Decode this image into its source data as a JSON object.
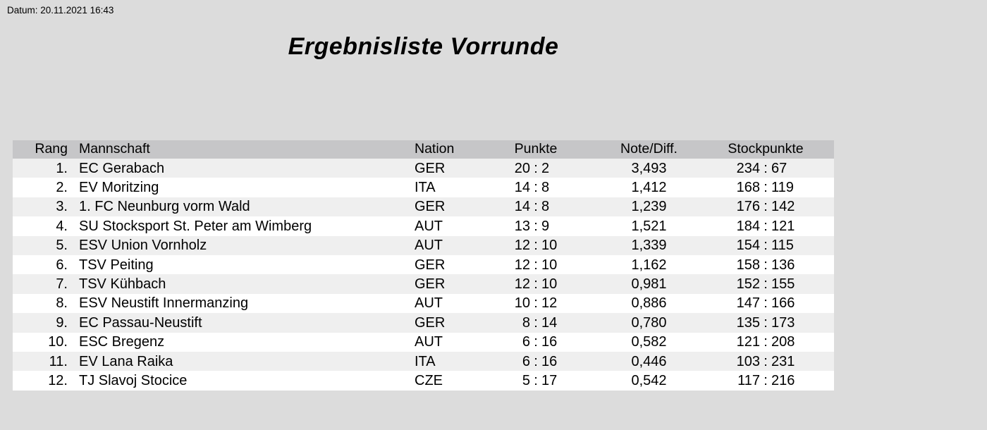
{
  "meta": {
    "date_label": "Datum: 20.11.2021 16:43"
  },
  "title": "Ergebnisliste Vorrunde",
  "table": {
    "headers": {
      "rank": "Rang",
      "team": "Mannschaft",
      "nation": "Nation",
      "points": "Punkte",
      "note": "Note/Diff.",
      "stockpoints": "Stockpunkte"
    },
    "score_separator": ":",
    "rows": [
      {
        "rank": "1.",
        "team": "EC Gerabach",
        "nation": "GER",
        "points_for": "20",
        "points_against": "2",
        "note": "3,493",
        "stock_for": "234",
        "stock_against": "67"
      },
      {
        "rank": "2.",
        "team": "EV Moritzing",
        "nation": "ITA",
        "points_for": "14",
        "points_against": "8",
        "note": "1,412",
        "stock_for": "168",
        "stock_against": "119"
      },
      {
        "rank": "3.",
        "team": "1. FC Neunburg vorm Wald",
        "nation": "GER",
        "points_for": "14",
        "points_against": "8",
        "note": "1,239",
        "stock_for": "176",
        "stock_against": "142"
      },
      {
        "rank": "4.",
        "team": "SU Stocksport St. Peter am Wimberg",
        "nation": "AUT",
        "points_for": "13",
        "points_against": "9",
        "note": "1,521",
        "stock_for": "184",
        "stock_against": "121"
      },
      {
        "rank": "5.",
        "team": "ESV Union Vornholz",
        "nation": "AUT",
        "points_for": "12",
        "points_against": "10",
        "note": "1,339",
        "stock_for": "154",
        "stock_against": "115"
      },
      {
        "rank": "6.",
        "team": "TSV Peiting",
        "nation": "GER",
        "points_for": "12",
        "points_against": "10",
        "note": "1,162",
        "stock_for": "158",
        "stock_against": "136"
      },
      {
        "rank": "7.",
        "team": "TSV Kühbach",
        "nation": "GER",
        "points_for": "12",
        "points_against": "10",
        "note": "0,981",
        "stock_for": "152",
        "stock_against": "155"
      },
      {
        "rank": "8.",
        "team": "ESV Neustift Innermanzing",
        "nation": "AUT",
        "points_for": "10",
        "points_against": "12",
        "note": "0,886",
        "stock_for": "147",
        "stock_against": "166"
      },
      {
        "rank": "9.",
        "team": "EC Passau-Neustift",
        "nation": "GER",
        "points_for": "8",
        "points_against": "14",
        "note": "0,780",
        "stock_for": "135",
        "stock_against": "173"
      },
      {
        "rank": "10.",
        "team": "ESC Bregenz",
        "nation": "AUT",
        "points_for": "6",
        "points_against": "16",
        "note": "0,582",
        "stock_for": "121",
        "stock_against": "208"
      },
      {
        "rank": "11.",
        "team": "EV Lana Raika",
        "nation": "ITA",
        "points_for": "6",
        "points_against": "16",
        "note": "0,446",
        "stock_for": "103",
        "stock_against": "231"
      },
      {
        "rank": "12.",
        "team": "TJ Slavoj Stocice",
        "nation": "CZE",
        "points_for": "5",
        "points_against": "17",
        "note": "0,542",
        "stock_for": "117",
        "stock_against": "216"
      }
    ]
  },
  "colors": {
    "page_bg": "#dcdcdc",
    "header_bg": "#c6c6c8",
    "row_odd_bg": "#efefef",
    "row_even_bg": "#ffffff",
    "text": "#000000"
  }
}
